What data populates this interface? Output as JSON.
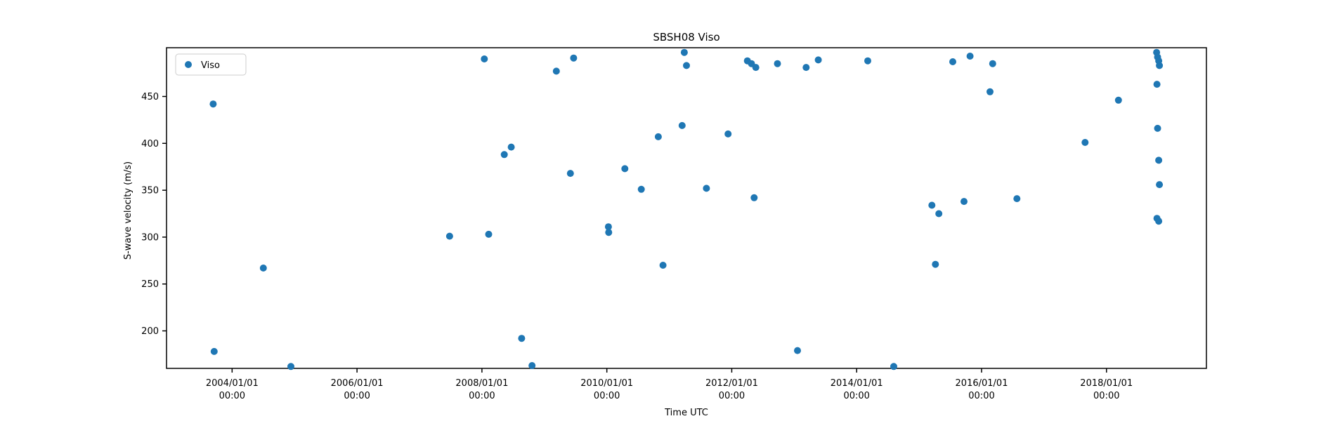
{
  "chart_data": {
    "type": "scatter",
    "title": "SBSH08 Viso",
    "xlabel": "Time UTC",
    "ylabel": "S-wave velocity (m/s)",
    "grid": false,
    "marker_color": "#1f77b4",
    "marker_radius_px": 5,
    "legend": {
      "position": "upper left",
      "entries": [
        "Viso"
      ]
    },
    "xlim_decimal_years": [
      2002.95,
      2019.6
    ],
    "ylim": [
      160,
      502
    ],
    "y_ticks": [
      200,
      250,
      300,
      350,
      400,
      450
    ],
    "x_ticks": [
      {
        "year": 2004,
        "line1": "2004/01/01",
        "line2": "00:00"
      },
      {
        "year": 2006,
        "line1": "2006/01/01",
        "line2": "00:00"
      },
      {
        "year": 2008,
        "line1": "2008/01/01",
        "line2": "00:00"
      },
      {
        "year": 2010,
        "line1": "2010/01/01",
        "line2": "00:00"
      },
      {
        "year": 2012,
        "line1": "2012/01/01",
        "line2": "00:00"
      },
      {
        "year": 2014,
        "line1": "2014/01/01",
        "line2": "00:00"
      },
      {
        "year": 2016,
        "line1": "2016/01/01",
        "line2": "00:00"
      },
      {
        "year": 2018,
        "line1": "2018/01/01",
        "line2": "00:00"
      }
    ],
    "points": [
      [
        "2003-09-12",
        442
      ],
      [
        "2003-09-18",
        178
      ],
      [
        "2004-07-01",
        267
      ],
      [
        "2004-12-10",
        162
      ],
      [
        "2007-06-25",
        301
      ],
      [
        "2008-01-15",
        490
      ],
      [
        "2008-02-10",
        303
      ],
      [
        "2008-05-10",
        388
      ],
      [
        "2008-06-20",
        396
      ],
      [
        "2008-08-20",
        192
      ],
      [
        "2008-10-20",
        163
      ],
      [
        "2009-03-10",
        477
      ],
      [
        "2009-06-01",
        368
      ],
      [
        "2009-06-20",
        491
      ],
      [
        "2010-01-10",
        311
      ],
      [
        "2010-01-12",
        305
      ],
      [
        "2010-04-15",
        373
      ],
      [
        "2010-07-20",
        351
      ],
      [
        "2010-10-28",
        407
      ],
      [
        "2010-11-25",
        270
      ],
      [
        "2011-03-15",
        419
      ],
      [
        "2011-03-28",
        497
      ],
      [
        "2011-04-10",
        483
      ],
      [
        "2011-08-05",
        352
      ],
      [
        "2011-12-10",
        410
      ],
      [
        "2012-04-01",
        488
      ],
      [
        "2012-04-25",
        485
      ],
      [
        "2012-05-20",
        481
      ],
      [
        "2012-05-10",
        342
      ],
      [
        "2012-09-25",
        485
      ],
      [
        "2013-01-20",
        179
      ],
      [
        "2013-03-10",
        481
      ],
      [
        "2013-05-20",
        489
      ],
      [
        "2014-03-05",
        488
      ],
      [
        "2014-08-05",
        162
      ],
      [
        "2015-03-15",
        334
      ],
      [
        "2015-04-05",
        271
      ],
      [
        "2015-04-25",
        325
      ],
      [
        "2015-07-15",
        487
      ],
      [
        "2015-09-20",
        338
      ],
      [
        "2015-10-25",
        493
      ],
      [
        "2016-02-20",
        455
      ],
      [
        "2016-03-05",
        485
      ],
      [
        "2016-07-25",
        341
      ],
      [
        "2017-08-28",
        401
      ],
      [
        "2018-03-10",
        446
      ],
      [
        "2018-10-20",
        497
      ],
      [
        "2018-10-26",
        492
      ],
      [
        "2018-11-02",
        488
      ],
      [
        "2018-11-06",
        483
      ],
      [
        "2018-10-22",
        463
      ],
      [
        "2018-10-26",
        416
      ],
      [
        "2018-11-02",
        382
      ],
      [
        "2018-11-06",
        356
      ],
      [
        "2018-10-22",
        320
      ],
      [
        "2018-11-02",
        317
      ]
    ]
  }
}
